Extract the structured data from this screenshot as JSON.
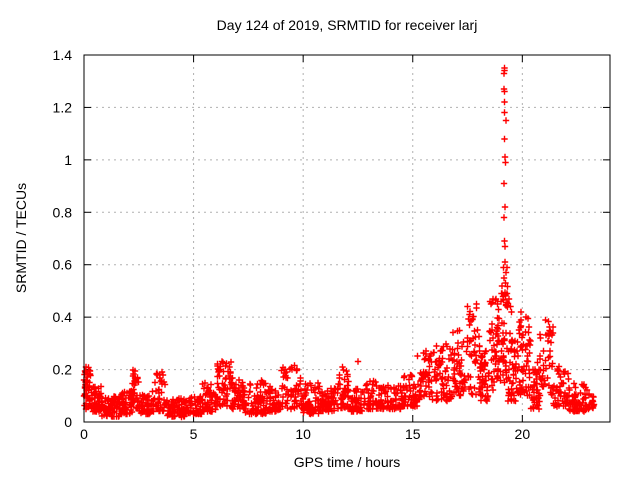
{
  "figure": {
    "background": "#ffffff"
  },
  "chart_data": {
    "type": "scatter",
    "title": "Day 124 of 2019, SRMTID for receiver larj",
    "xlabel": "GPS time / hours",
    "ylabel": "SRMTID / TECUs",
    "xlim": [
      0,
      24
    ],
    "ylim": [
      0,
      1.4
    ],
    "xticks": [
      0,
      5,
      10,
      15,
      20
    ],
    "xtick_labels": [
      "0",
      "5",
      "10",
      "15",
      "20"
    ],
    "yticks": [
      0,
      0.2,
      0.4,
      0.6,
      0.8,
      1.0,
      1.2,
      1.4
    ],
    "ytick_labels": [
      "0",
      "0.2",
      "0.4",
      "0.6",
      "0.8",
      "1",
      "1.2",
      "1.4"
    ],
    "grid": true,
    "legend": "none",
    "marker": "plus",
    "marker_color": "#ff0000",
    "grid_color": "#b0b0b0",
    "border_color": "#000000",
    "description": "Dense red plus-sign scatter: baseline band 0.02-0.2 TECUs from 0-15 h with small bumps near 2.3, 3.5, 6.3, 9.5 and 11.8 h; rises after 15 h to 0.1-0.45; sharp vertical spike near 19.2 h reaching 1.35; secondary bumps near 20.0 and 21.0 h (~0.4) then decay to ~0.05-0.15 by 23 h; no data after ~23.3 h",
    "spike": {
      "x": 19.2,
      "jitter": 0.1,
      "values": [
        1.35,
        1.34,
        1.33,
        1.27,
        1.26,
        1.22,
        1.18,
        1.15,
        1.08,
        1.01,
        0.99,
        0.91,
        0.82,
        0.78,
        0.69,
        0.67,
        0.61,
        0.59,
        0.57,
        0.55,
        0.53
      ]
    },
    "outliers": [
      [
        0.1,
        0.21
      ],
      [
        2.32,
        0.195
      ],
      [
        3.55,
        0.19
      ],
      [
        6.3,
        0.23
      ],
      [
        9.6,
        0.215
      ],
      [
        11.8,
        0.21
      ],
      [
        12.5,
        0.23
      ],
      [
        15.6,
        0.27
      ],
      [
        17.9,
        0.45
      ],
      [
        18.8,
        0.47
      ],
      [
        19.3,
        0.59
      ],
      [
        19.4,
        0.47
      ],
      [
        19.45,
        0.44
      ],
      [
        19.5,
        0.42
      ],
      [
        19.95,
        0.42
      ],
      [
        21.05,
        0.39
      ]
    ],
    "density_segments": [
      {
        "x0": 0.0,
        "x1": 0.3,
        "n": 45,
        "lo": 0.05,
        "hi": 0.21,
        "p": 1.0
      },
      {
        "x0": 0.3,
        "x1": 0.8,
        "n": 50,
        "lo": 0.04,
        "hi": 0.14,
        "p": 1.6
      },
      {
        "x0": 0.8,
        "x1": 1.6,
        "n": 70,
        "lo": 0.02,
        "hi": 0.1,
        "p": 1.6
      },
      {
        "x0": 1.6,
        "x1": 2.2,
        "n": 55,
        "lo": 0.03,
        "hi": 0.12,
        "p": 1.6
      },
      {
        "x0": 2.2,
        "x1": 2.5,
        "n": 30,
        "lo": 0.05,
        "hi": 0.2,
        "p": 1.2
      },
      {
        "x0": 2.5,
        "x1": 3.1,
        "n": 50,
        "lo": 0.03,
        "hi": 0.11,
        "p": 1.6
      },
      {
        "x0": 3.1,
        "x1": 3.7,
        "n": 45,
        "lo": 0.04,
        "hi": 0.19,
        "p": 1.3
      },
      {
        "x0": 3.7,
        "x1": 4.6,
        "n": 70,
        "lo": 0.02,
        "hi": 0.09,
        "p": 1.6
      },
      {
        "x0": 4.6,
        "x1": 5.4,
        "n": 60,
        "lo": 0.03,
        "hi": 0.1,
        "p": 1.6
      },
      {
        "x0": 5.4,
        "x1": 6.0,
        "n": 50,
        "lo": 0.04,
        "hi": 0.15,
        "p": 1.6
      },
      {
        "x0": 6.0,
        "x1": 6.7,
        "n": 55,
        "lo": 0.06,
        "hi": 0.23,
        "p": 1.3
      },
      {
        "x0": 6.7,
        "x1": 7.3,
        "n": 50,
        "lo": 0.05,
        "hi": 0.17,
        "p": 1.6
      },
      {
        "x0": 7.3,
        "x1": 8.3,
        "n": 70,
        "lo": 0.03,
        "hi": 0.16,
        "p": 1.6
      },
      {
        "x0": 8.3,
        "x1": 9.0,
        "n": 55,
        "lo": 0.04,
        "hi": 0.14,
        "p": 1.6
      },
      {
        "x0": 9.0,
        "x1": 9.9,
        "n": 60,
        "lo": 0.05,
        "hi": 0.21,
        "p": 1.3
      },
      {
        "x0": 9.9,
        "x1": 10.8,
        "n": 65,
        "lo": 0.03,
        "hi": 0.15,
        "p": 1.6
      },
      {
        "x0": 10.8,
        "x1": 11.6,
        "n": 60,
        "lo": 0.04,
        "hi": 0.13,
        "p": 1.6
      },
      {
        "x0": 11.6,
        "x1": 12.1,
        "n": 40,
        "lo": 0.05,
        "hi": 0.2,
        "p": 1.3
      },
      {
        "x0": 12.1,
        "x1": 12.7,
        "n": 45,
        "lo": 0.04,
        "hi": 0.13,
        "p": 1.6
      },
      {
        "x0": 12.7,
        "x1": 13.6,
        "n": 60,
        "lo": 0.05,
        "hi": 0.16,
        "p": 1.6
      },
      {
        "x0": 13.6,
        "x1": 14.5,
        "n": 60,
        "lo": 0.05,
        "hi": 0.14,
        "p": 1.6
      },
      {
        "x0": 14.5,
        "x1": 15.2,
        "n": 50,
        "lo": 0.06,
        "hi": 0.18,
        "p": 1.6
      },
      {
        "x0": 15.2,
        "x1": 16.0,
        "n": 55,
        "lo": 0.08,
        "hi": 0.27,
        "p": 1.3
      },
      {
        "x0": 16.0,
        "x1": 16.8,
        "n": 60,
        "lo": 0.08,
        "hi": 0.3,
        "p": 1.3
      },
      {
        "x0": 16.8,
        "x1": 17.4,
        "n": 50,
        "lo": 0.1,
        "hi": 0.35,
        "p": 1.2
      },
      {
        "x0": 17.4,
        "x1": 18.1,
        "n": 55,
        "lo": 0.1,
        "hi": 0.45,
        "p": 1.2
      },
      {
        "x0": 18.1,
        "x1": 18.5,
        "n": 40,
        "lo": 0.08,
        "hi": 0.28,
        "p": 1.2
      },
      {
        "x0": 18.5,
        "x1": 19.0,
        "n": 50,
        "lo": 0.12,
        "hi": 0.47,
        "p": 1.2
      },
      {
        "x0": 19.0,
        "x1": 19.35,
        "n": 45,
        "lo": 0.15,
        "hi": 0.52,
        "p": 1.2
      },
      {
        "x0": 19.35,
        "x1": 19.8,
        "n": 45,
        "lo": 0.08,
        "hi": 0.35,
        "p": 1.2
      },
      {
        "x0": 19.8,
        "x1": 20.4,
        "n": 55,
        "lo": 0.1,
        "hi": 0.42,
        "p": 1.3
      },
      {
        "x0": 20.4,
        "x1": 20.8,
        "n": 40,
        "lo": 0.05,
        "hi": 0.25,
        "p": 1.6
      },
      {
        "x0": 20.8,
        "x1": 21.4,
        "n": 45,
        "lo": 0.1,
        "hi": 0.39,
        "p": 1.3
      },
      {
        "x0": 21.4,
        "x1": 22.1,
        "n": 50,
        "lo": 0.06,
        "hi": 0.22,
        "p": 1.6
      },
      {
        "x0": 22.1,
        "x1": 23.1,
        "n": 70,
        "lo": 0.04,
        "hi": 0.15,
        "p": 1.6
      },
      {
        "x0": 23.1,
        "x1": 23.3,
        "n": 10,
        "lo": 0.05,
        "hi": 0.1,
        "p": 1.6
      }
    ]
  }
}
